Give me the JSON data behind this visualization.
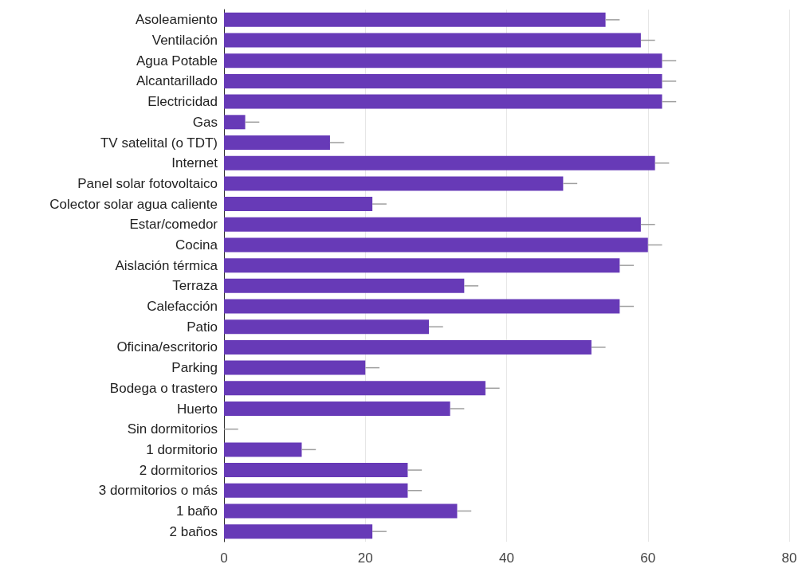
{
  "chart_data": {
    "type": "bar",
    "orientation": "horizontal",
    "categories": [
      "Asoleamiento",
      "Ventilación",
      "Agua Potable",
      "Alcantarillado",
      "Electricidad",
      "Gas",
      "TV satelital (o TDT)",
      "Internet",
      "Panel solar fotovoltaico",
      "Colector solar agua caliente",
      "Estar/comedor",
      "Cocina",
      "Aislación térmica",
      "Terraza",
      "Calefacción",
      "Patio",
      "Oficina/escritorio",
      "Parking",
      "Bodega o trastero",
      "Huerto",
      "Sin dormitorios",
      "1 dormitorio",
      "2 dormitorios",
      "3 dormitorios o más",
      "1 baño",
      "2 baños"
    ],
    "values": [
      54,
      59,
      62,
      62,
      62,
      3,
      15,
      61,
      48,
      21,
      59,
      60,
      56,
      34,
      56,
      29,
      52,
      20,
      37,
      32,
      0,
      11,
      26,
      26,
      33,
      21
    ],
    "errors": [
      [
        54,
        56
      ],
      [
        59,
        61
      ],
      [
        62,
        64
      ],
      [
        62,
        64
      ],
      [
        62,
        64
      ],
      [
        3,
        5
      ],
      [
        15,
        17
      ],
      [
        61,
        63
      ],
      [
        48,
        50
      ],
      [
        21,
        23
      ],
      [
        59,
        61
      ],
      [
        60,
        62
      ],
      [
        56,
        58
      ],
      [
        34,
        36
      ],
      [
        56,
        58
      ],
      [
        29,
        31
      ],
      [
        52,
        54
      ],
      [
        20,
        22
      ],
      [
        37,
        39
      ],
      [
        32,
        34
      ],
      [
        0,
        2
      ],
      [
        11,
        13
      ],
      [
        26,
        28
      ],
      [
        26,
        28
      ],
      [
        33,
        35
      ],
      [
        21,
        23
      ]
    ],
    "color": "#673ab7",
    "xlim": [
      0,
      80
    ],
    "xticks": [
      0,
      20,
      40,
      60,
      80
    ],
    "grid": "x"
  }
}
